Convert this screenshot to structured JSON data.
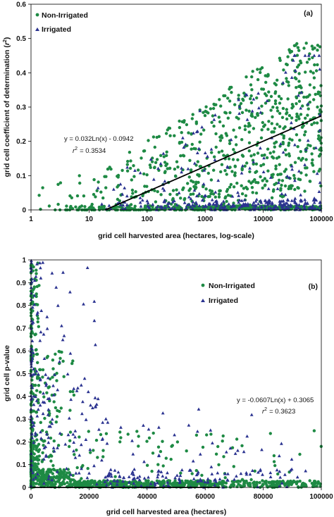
{
  "chart_data": [
    {
      "type": "scatter",
      "panel_label": "(a)",
      "title": "",
      "xlabel": "grid cell harvested area (hectares, log-scale)",
      "ylabel": "grid cell coefficient of determination (r²)",
      "ylabel_main": "grid cell coefficient of determination (",
      "ylabel_r": "r",
      "ylabel_sup": "2",
      "ylabel_tail": ")",
      "x_scale": "log",
      "xlim": [
        1,
        100000
      ],
      "ylim": [
        0,
        0.6
      ],
      "x_ticks": [
        1,
        10,
        100,
        1000,
        10000,
        100000
      ],
      "x_tick_labels": [
        "1",
        "10",
        "100",
        "1000",
        "10000",
        "100000"
      ],
      "y_ticks": [
        0,
        0.1,
        0.2,
        0.3,
        0.4,
        0.5,
        0.6
      ],
      "y_tick_labels": [
        "0",
        "0.1",
        "0.2",
        "0.3",
        "0.4",
        "0.5",
        "0.6"
      ],
      "grid": false,
      "legend_position": "top-left",
      "series": [
        {
          "name": "Non-Irrigated",
          "marker": "circle",
          "color": "#1e8a44",
          "x_range": [
            1,
            100000
          ],
          "y_range": [
            0,
            0.6
          ],
          "n_points": 1100
        },
        {
          "name": "Irrigated",
          "marker": "triangle",
          "color": "#2b3390",
          "x_range": [
            10,
            100000
          ],
          "y_range": [
            0,
            0.45
          ],
          "n_points": 350
        }
      ],
      "trendline": {
        "type": "logarithmic",
        "a": 0.032,
        "b": -0.0942,
        "x_start": 19,
        "x_end": 100000
      },
      "equation": "y = 0.032Ln(x) - 0.0942",
      "r2_symbol": "r",
      "r2_sup": "2",
      "r2_value": "= 0.3534"
    },
    {
      "type": "scatter",
      "panel_label": "(b)",
      "title": "",
      "xlabel": "grid cell harvested area (hectares)",
      "ylabel": "grid cell p-value",
      "x_scale": "linear",
      "xlim": [
        0,
        100000
      ],
      "ylim": [
        0,
        1
      ],
      "x_ticks": [
        0,
        20000,
        40000,
        60000,
        80000,
        100000
      ],
      "x_tick_labels": [
        "0",
        "20000",
        "40000",
        "60000",
        "80000",
        "100000"
      ],
      "y_ticks": [
        0,
        0.1,
        0.2,
        0.3,
        0.4,
        0.5,
        0.6,
        0.7,
        0.8,
        0.9,
        1
      ],
      "y_tick_labels": [
        "0",
        "0.1",
        "0.2",
        "0.3",
        "0.4",
        "0.5",
        "0.6",
        "0.7",
        "0.8",
        "0.9",
        "1"
      ],
      "grid": false,
      "legend_position": "top-right",
      "series": [
        {
          "name": "Non-Irrigated",
          "marker": "circle",
          "color": "#1e8a44",
          "x_range": [
            0,
            100000
          ],
          "y_range": [
            0,
            1
          ],
          "n_points": 1200
        },
        {
          "name": "Irrigated",
          "marker": "triangle",
          "color": "#2b3390",
          "x_range": [
            0,
            95000
          ],
          "y_range": [
            0,
            1
          ],
          "n_points": 350
        }
      ],
      "trendline": {
        "type": "logarithmic",
        "a": -0.0607,
        "b": 0.3065,
        "x_start": 400,
        "x_end": 65000
      },
      "equation": "y = -0.0607Ln(x) + 0.3065",
      "r2_symbol": "r",
      "r2_sup": "2",
      "r2_value": "= 0.3623"
    }
  ]
}
